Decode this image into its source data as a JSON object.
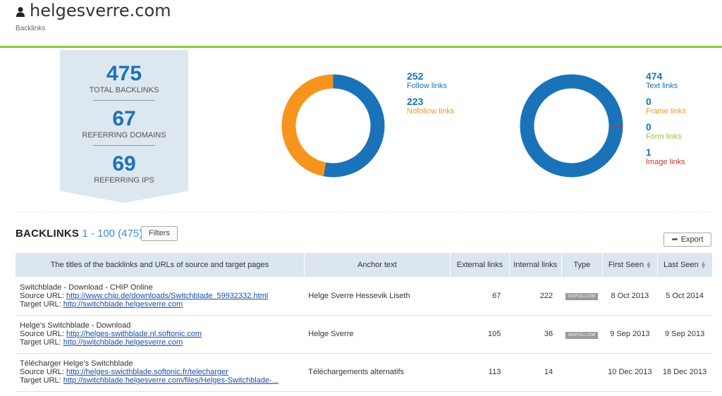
{
  "header": {
    "site": "helgesverre.com",
    "section": "Backlinks"
  },
  "summary": {
    "total_backlinks": "475",
    "total_backlinks_label": "TOTAL BACKLINKS",
    "referring_domains": "67",
    "referring_domains_label": "REFERRING DOMAINS",
    "referring_ips": "69",
    "referring_ips_label": "REFERRING IPS"
  },
  "follow_chart": {
    "items": [
      {
        "value": "252",
        "label": "Follow links",
        "color": "#1a73b8"
      },
      {
        "value": "223",
        "label": "Nofollow links",
        "color": "#f7941d"
      }
    ]
  },
  "type_chart": {
    "items": [
      {
        "value": "474",
        "label": "Text links",
        "color": "#1a73b8"
      },
      {
        "value": "0",
        "label": "Frame links",
        "color": "#f7941d"
      },
      {
        "value": "0",
        "label": "Form links",
        "color": "#8dc63f"
      },
      {
        "value": "1",
        "label": "Image links",
        "color": "#c0392b"
      }
    ]
  },
  "backlinks": {
    "title": "BACKLINKS",
    "range": "1 - 100 (475)",
    "filters_label": "Filters",
    "export_label": "Export",
    "columns": [
      "The titles of the backlinks and URLs of source and target pages",
      "Anchor text",
      "External links",
      "Internal links",
      "Type",
      "First Seen",
      "Last Seen"
    ],
    "source_label": "Source URL:",
    "target_label": "Target URL:",
    "rows": [
      {
        "title": "Switchblade - Download - CHIP Online",
        "source": "http://www.chip.de/downloads/Switchblade_59932332.html",
        "target": "http://switchblade.helgesverre.com",
        "anchor": "Helge Sverre Hessevik Liseth",
        "external": "67",
        "internal": "222",
        "type": "NOFOLLOW",
        "first_seen": "8 Oct 2013",
        "last_seen": "5 Oct 2014"
      },
      {
        "title": "Helge's Switchblade - Download",
        "source": "http://helges-swithblade.nl.softonic.com",
        "target": "http://switchblade.helgesverre.com",
        "anchor": "Helge Sverre",
        "external": "105",
        "internal": "36",
        "type": "NOFOLLOW",
        "first_seen": "9 Sep 2013",
        "last_seen": "9 Sep 2013"
      },
      {
        "title": "Télécharger Helge's Switchblade",
        "source": "http://helges-swicthblade.softonic.fr/telecharger",
        "target": "http://switchblade.helgesverre.com/files/Helges-Switchblade-...",
        "anchor": "Téléchargements alternatifs",
        "external": "113",
        "internal": "14",
        "type": "",
        "first_seen": "10 Dec 2013",
        "last_seen": "18 Dec 2013"
      }
    ]
  }
}
